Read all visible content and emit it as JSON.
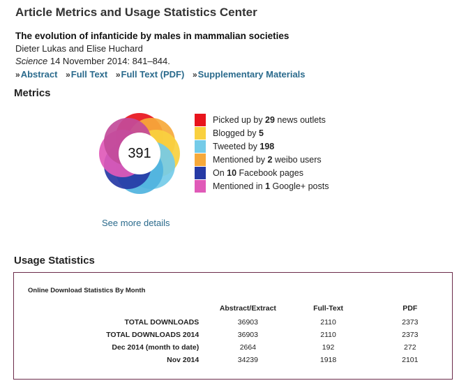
{
  "page": {
    "title": "Article Metrics and Usage Statistics Center"
  },
  "article": {
    "title": "The evolution of infanticide by males in mammalian societies",
    "authors": "Dieter Lukas and Elise Huchard",
    "journal": "Science",
    "citation_rest": " 14 November 2014: 841–844."
  },
  "links": [
    {
      "marker": "»",
      "label": "Abstract"
    },
    {
      "marker": "»",
      "label": "Full Text"
    },
    {
      "marker": "»",
      "label": "Full Text (PDF)"
    },
    {
      "marker": "»",
      "label": "Supplementary Materials"
    }
  ],
  "metrics": {
    "heading": "Metrics",
    "score": "391",
    "see_more": "See more details",
    "legend": [
      {
        "pre": "Picked up by ",
        "count": "29",
        "post": " news outlets",
        "color": "#e8141c"
      },
      {
        "pre": "Blogged by ",
        "count": "5",
        "post": "",
        "color": "#f9d03f"
      },
      {
        "pre": "Tweeted by ",
        "count": "198",
        "post": "",
        "color": "#74cbe8"
      },
      {
        "pre": "Mentioned by ",
        "count": "2",
        "post": " weibo users",
        "color": "#f6a93b"
      },
      {
        "pre": "On ",
        "count": "10",
        "post": " Facebook pages",
        "color": "#263aa5"
      },
      {
        "pre": "Mentioned in ",
        "count": "1",
        "post": " Google+ posts",
        "color": "#e05ab8"
      }
    ],
    "donut_segments": [
      {
        "color": "#e8141c"
      },
      {
        "color": "#f6a93b"
      },
      {
        "color": "#f9d03f"
      },
      {
        "color": "#74cbe8"
      },
      {
        "color": "#4fb3de"
      },
      {
        "color": "#263aa5"
      },
      {
        "color": "#e05ab8"
      },
      {
        "color": "#c24b9a"
      }
    ]
  },
  "usage": {
    "heading": "Usage Statistics",
    "caption": "Online Download Statistics By Month",
    "columns": [
      "",
      "Abstract/Extract",
      "Full-Text",
      "PDF"
    ],
    "rows": [
      [
        "TOTAL DOWNLOADS",
        "36903",
        "2110",
        "2373"
      ],
      [
        "TOTAL DOWNLOADS 2014",
        "36903",
        "2110",
        "2373"
      ],
      [
        "Dec 2014 (month to date)",
        "2664",
        "192",
        "272"
      ],
      [
        "Nov 2014",
        "34239",
        "1918",
        "2101"
      ]
    ]
  }
}
